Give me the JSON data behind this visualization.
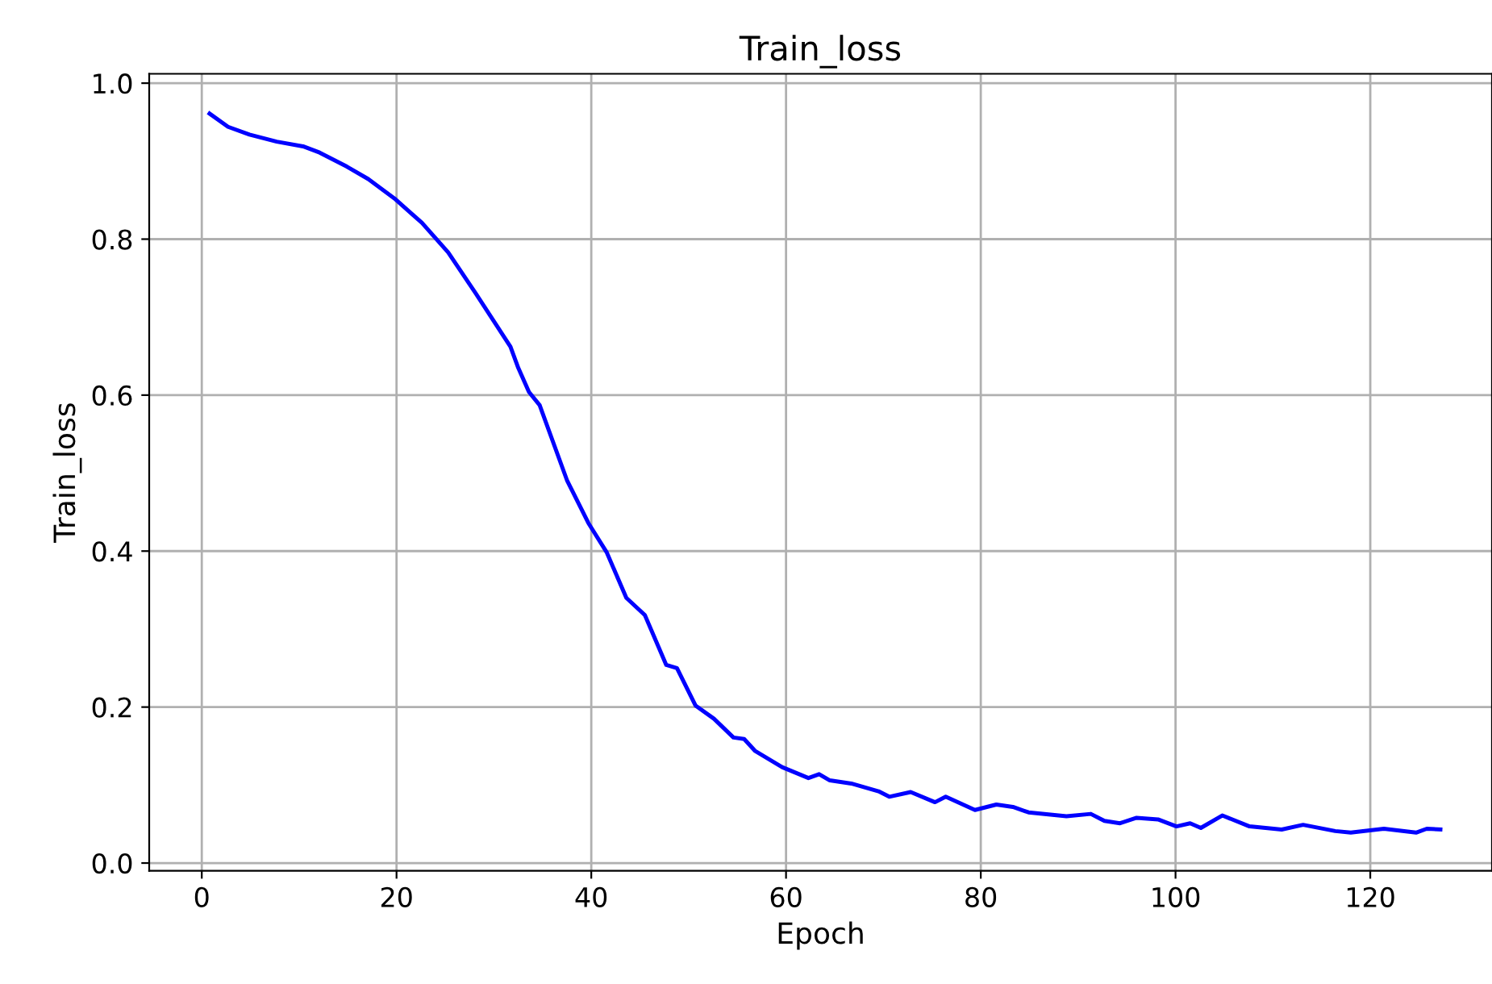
{
  "chart_data": {
    "type": "line",
    "title": "Train_loss",
    "xlabel": "Epoch",
    "ylabel": "Train_loss",
    "series": [
      {
        "color": "#0000ff",
        "x": [
          0.8,
          2.7,
          4.9,
          7.7,
          10.4,
          12.1,
          14.9,
          17.1,
          19.8,
          22.6,
          25.3,
          28.1,
          31.7,
          32.5,
          33.6,
          34.7,
          37.5,
          39.7,
          41.6,
          43.6,
          45.5,
          47.7,
          48.8,
          50.7,
          52.6,
          54.6,
          55.7,
          56.8,
          59.6,
          62.3,
          63.4,
          64.5,
          66.7,
          69.5,
          70.6,
          72.8,
          75.3,
          76.4,
          79.4,
          81.6,
          83.3,
          84.9,
          88.8,
          91.3,
          92.7,
          94.3,
          96.0,
          98.2,
          100.1,
          101.5,
          102.6,
          104.8,
          107.6,
          110.9,
          113.1,
          116.4,
          118.0,
          121.4,
          124.7,
          125.8,
          127.2
        ],
        "values": [
          0.961,
          0.944,
          0.934,
          0.925,
          0.919,
          0.911,
          0.893,
          0.877,
          0.852,
          0.821,
          0.783,
          0.731,
          0.662,
          0.635,
          0.604,
          0.587,
          0.491,
          0.436,
          0.398,
          0.34,
          0.318,
          0.254,
          0.25,
          0.202,
          0.185,
          0.161,
          0.159,
          0.144,
          0.123,
          0.109,
          0.114,
          0.106,
          0.102,
          0.092,
          0.085,
          0.091,
          0.078,
          0.085,
          0.068,
          0.075,
          0.072,
          0.065,
          0.06,
          0.063,
          0.054,
          0.051,
          0.058,
          0.056,
          0.047,
          0.051,
          0.045,
          0.061,
          0.047,
          0.043,
          0.049,
          0.041,
          0.039,
          0.044,
          0.039,
          0.044,
          0.043
        ]
      }
    ],
    "xlim": [
      -5.4,
      132.5
    ],
    "ylim": [
      -0.01,
      1.012
    ],
    "xticks": [
      0,
      20,
      40,
      60,
      80,
      100,
      120
    ],
    "yticks": [
      {
        "value": 0,
        "label": "0.0"
      },
      {
        "value": 0.2,
        "label": "0.2"
      },
      {
        "value": 0.4,
        "label": "0.4"
      },
      {
        "value": 0.6,
        "label": "0.6"
      },
      {
        "value": 0.8,
        "label": "0.8"
      },
      {
        "value": 1,
        "label": "1.0"
      }
    ],
    "grid": true,
    "marker": "none",
    "line_style": "solid"
  }
}
